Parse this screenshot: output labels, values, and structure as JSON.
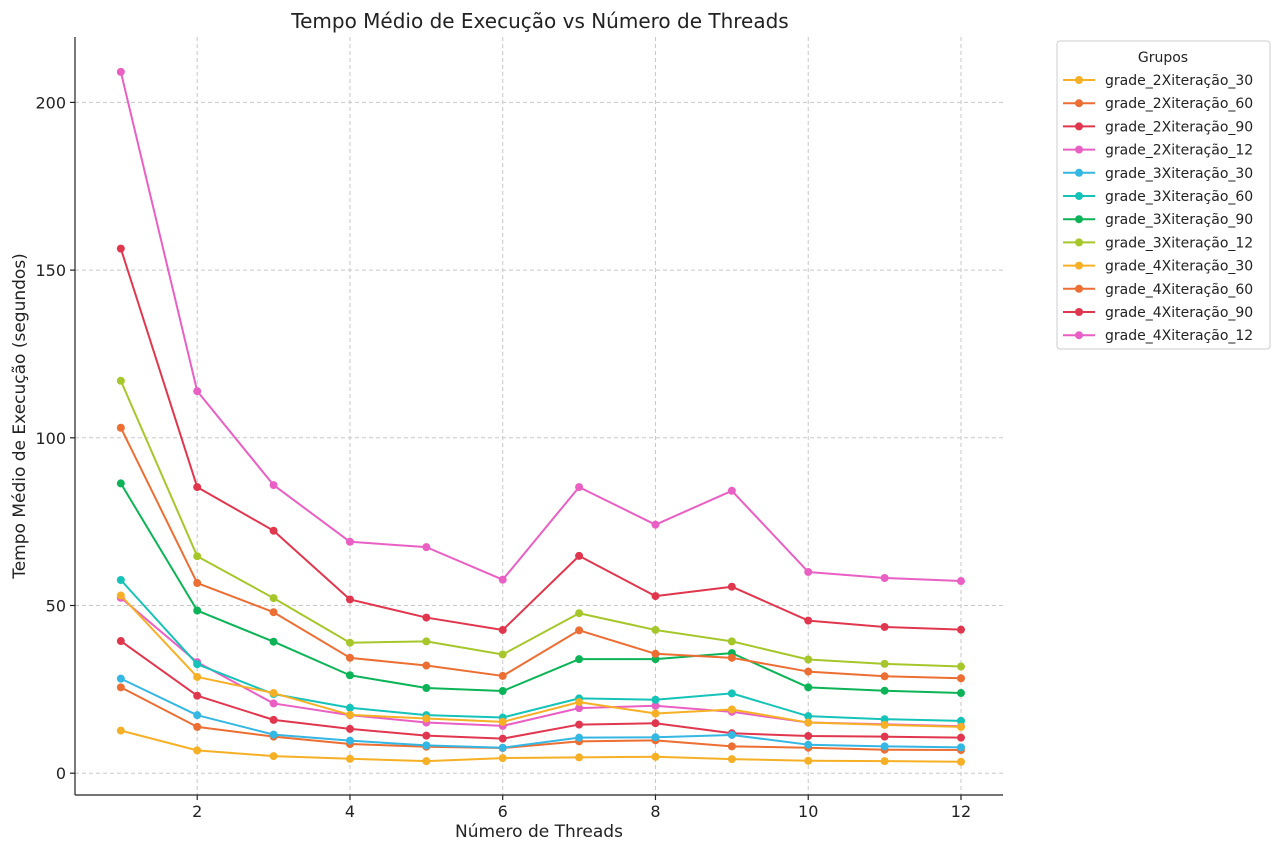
{
  "chart_data": {
    "type": "line",
    "title": "Tempo Médio de Execução vs Número de Threads",
    "xlabel": "Número de Threads",
    "ylabel": "Tempo Médio de Execução (segundos)",
    "x": [
      1,
      2,
      3,
      4,
      5,
      6,
      7,
      8,
      9,
      10,
      11,
      12
    ],
    "xlim": [
      0.4,
      12.55
    ],
    "ylim": [
      -6.5,
      219.5
    ],
    "xticks": [
      2,
      4,
      6,
      8,
      10,
      12
    ],
    "yticks": [
      0,
      50,
      100,
      150,
      200
    ],
    "grid": true,
    "legend": {
      "title": "Grupos",
      "placement": "outside-top-right"
    },
    "series": [
      {
        "name": "grade_2Xiteração_30",
        "color": "#f6b026",
        "values": [
          12.7,
          6.8,
          5.1,
          4.3,
          3.6,
          4.5,
          4.7,
          4.9,
          4.2,
          3.7,
          3.6,
          3.4
        ]
      },
      {
        "name": "grade_2Xiteração_60",
        "color": "#ec6e33",
        "values": [
          25.6,
          13.8,
          10.9,
          8.7,
          7.9,
          7.5,
          9.5,
          9.8,
          8.0,
          7.6,
          7.0,
          6.9
        ]
      },
      {
        "name": "grade_2Xiteração_90",
        "color": "#e0374f",
        "values": [
          39.4,
          23.1,
          15.9,
          13.2,
          11.2,
          10.3,
          14.5,
          14.9,
          11.9,
          11.1,
          10.9,
          10.6
        ]
      },
      {
        "name": "grade_2Xiteração_12",
        "color": "#e95fc4",
        "values": [
          52.3,
          33.1,
          20.8,
          17.3,
          15.1,
          14.1,
          19.4,
          20.1,
          18.3,
          15.1,
          14.6,
          14.0
        ]
      },
      {
        "name": "grade_3Xiteração_30",
        "color": "#34b7e3",
        "values": [
          28.2,
          17.3,
          11.5,
          9.7,
          8.3,
          7.6,
          10.6,
          10.7,
          11.4,
          8.5,
          8.0,
          7.7
        ]
      },
      {
        "name": "grade_3Xiteração_60",
        "color": "#16c3b8",
        "values": [
          57.6,
          32.5,
          23.6,
          19.5,
          17.3,
          16.6,
          22.3,
          21.9,
          23.8,
          17.0,
          16.1,
          15.6
        ]
      },
      {
        "name": "grade_3Xiteração_90",
        "color": "#0cb457",
        "values": [
          86.4,
          48.5,
          39.2,
          29.2,
          25.4,
          24.5,
          34.0,
          34.0,
          35.8,
          25.6,
          24.6,
          23.9
        ]
      },
      {
        "name": "grade_3Xiteração_12",
        "color": "#a6c72b",
        "values": [
          117.0,
          64.7,
          52.2,
          38.9,
          39.3,
          35.4,
          47.7,
          42.7,
          39.3,
          33.9,
          32.6,
          31.8
        ]
      },
      {
        "name": "grade_4Xiteração_30",
        "color": "#f6b026",
        "values": [
          53.0,
          28.7,
          23.9,
          17.4,
          16.3,
          15.3,
          21.2,
          17.8,
          19.0,
          15.1,
          14.4,
          13.8
        ]
      },
      {
        "name": "grade_4Xiteração_60",
        "color": "#ec6e33",
        "values": [
          103.0,
          56.7,
          48.0,
          34.4,
          32.1,
          29.0,
          42.6,
          35.6,
          34.4,
          30.3,
          28.9,
          28.3
        ]
      },
      {
        "name": "grade_4Xiteração_90",
        "color": "#e0374f",
        "values": [
          156.4,
          85.3,
          72.3,
          51.8,
          46.4,
          42.7,
          64.8,
          52.8,
          55.6,
          45.5,
          43.6,
          42.8
        ]
      },
      {
        "name": "grade_4Xiteração_12",
        "color": "#e95fc4",
        "values": [
          209.1,
          113.9,
          85.9,
          69.0,
          67.4,
          57.7,
          85.3,
          74.1,
          84.2,
          60.0,
          58.2,
          57.3
        ]
      }
    ]
  }
}
